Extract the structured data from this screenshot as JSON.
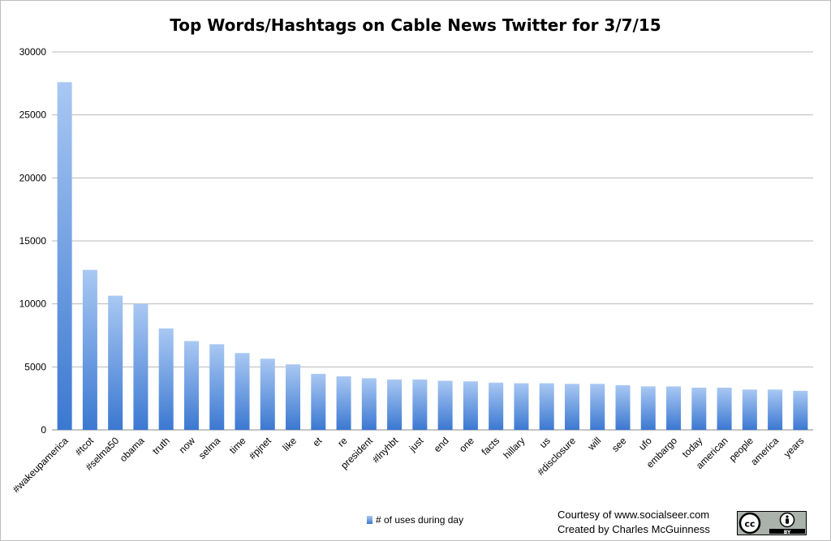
{
  "chart_data": {
    "type": "bar",
    "title": "Top Words/Hashtags on Cable News Twitter for 3/7/15",
    "xlabel": "",
    "ylabel": "",
    "ylim": [
      0,
      30000
    ],
    "yticks": [
      0,
      5000,
      10000,
      15000,
      20000,
      25000,
      30000
    ],
    "grid": true,
    "legend_position": "bottom",
    "categories": [
      "#wakeupamerica",
      "#tcot",
      "#selma50",
      "obama",
      "truth",
      "now",
      "selma",
      "time",
      "#pjnet",
      "like",
      "et",
      "re",
      "president",
      "#lnyhbt",
      "just",
      "end",
      "one",
      "facts",
      "hillary",
      "us",
      "#disclosure",
      "will",
      "see",
      "ufo",
      "embargo",
      "today",
      "american",
      "people",
      "america",
      "years"
    ],
    "series": [
      {
        "name": "# of uses during day",
        "values": [
          27600,
          12700,
          10650,
          10000,
          8050,
          7050,
          6800,
          6100,
          5650,
          5200,
          4450,
          4250,
          4100,
          4000,
          4000,
          3900,
          3850,
          3750,
          3700,
          3700,
          3650,
          3650,
          3550,
          3450,
          3450,
          3350,
          3350,
          3200,
          3200,
          3100
        ]
      }
    ],
    "bar_color_top": "#a9c8f3",
    "bar_color_bottom": "#3b78d1"
  },
  "credits": {
    "line1": "Courtesy of www.socialseer.com",
    "line2": "Created by Charles McGuinness"
  },
  "license_badge": {
    "cc_text": "cc",
    "by_text": "BY"
  }
}
